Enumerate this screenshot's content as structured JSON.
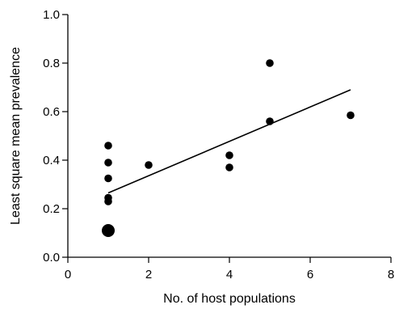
{
  "chart_data": {
    "type": "scatter",
    "xlabel": "No. of host populations",
    "ylabel": "Least square mean prevalence",
    "xlim": [
      0,
      8
    ],
    "ylim": [
      0,
      1.0
    ],
    "xticks": [
      "0",
      "2",
      "4",
      "6",
      "8"
    ],
    "yticks": [
      "0.0",
      "0.2",
      "0.4",
      "0.6",
      "0.8",
      "1.0"
    ],
    "grid": false,
    "points": [
      {
        "x": 1,
        "y": 0.46,
        "size": "normal"
      },
      {
        "x": 1,
        "y": 0.39,
        "size": "normal"
      },
      {
        "x": 1,
        "y": 0.325,
        "size": "normal"
      },
      {
        "x": 1,
        "y": 0.245,
        "size": "normal"
      },
      {
        "x": 1,
        "y": 0.23,
        "size": "normal"
      },
      {
        "x": 1,
        "y": 0.11,
        "size": "large"
      },
      {
        "x": 2,
        "y": 0.38,
        "size": "normal"
      },
      {
        "x": 4,
        "y": 0.42,
        "size": "normal"
      },
      {
        "x": 4,
        "y": 0.37,
        "size": "normal"
      },
      {
        "x": 5,
        "y": 0.8,
        "size": "normal"
      },
      {
        "x": 5,
        "y": 0.56,
        "size": "normal"
      },
      {
        "x": 7,
        "y": 0.585,
        "size": "normal"
      }
    ],
    "trendline": {
      "x": [
        1,
        7
      ],
      "y": [
        0.265,
        0.69
      ]
    },
    "colors": {
      "points": "#000000",
      "line": "#000000"
    }
  }
}
